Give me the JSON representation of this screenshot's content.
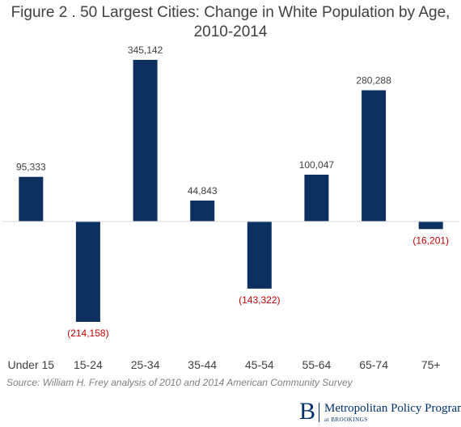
{
  "chart_data": {
    "type": "bar",
    "title_line1": "Figure 2 .  50 Largest Cities:  Change in White Population by Age,",
    "title_line2": "2010-2014",
    "categories": [
      "Under 15",
      "15-24",
      "25-34",
      "35-44",
      "45-54",
      "55-64",
      "65-74",
      "75+"
    ],
    "values": [
      95333,
      -214158,
      345142,
      44843,
      -143322,
      100047,
      280288,
      -16201
    ],
    "value_labels": [
      "95,333",
      "(214,158)",
      "345,142",
      "44,843",
      "(143,322)",
      "100,047",
      "280,288",
      "(16,201)"
    ],
    "xlabel": "",
    "ylabel": "",
    "ylim": [
      -214158,
      345142
    ],
    "grid": false,
    "bar_color": "#0c3060",
    "negative_label_color": "#c00000",
    "positive_label_color": "#404040"
  },
  "source": "Source: William H. Frey analysis of 2010 and 2014 American Community Survey",
  "logo": {
    "mark": "B",
    "name": "Metropolitan Policy Program",
    "sub": "at BROOKINGS"
  }
}
